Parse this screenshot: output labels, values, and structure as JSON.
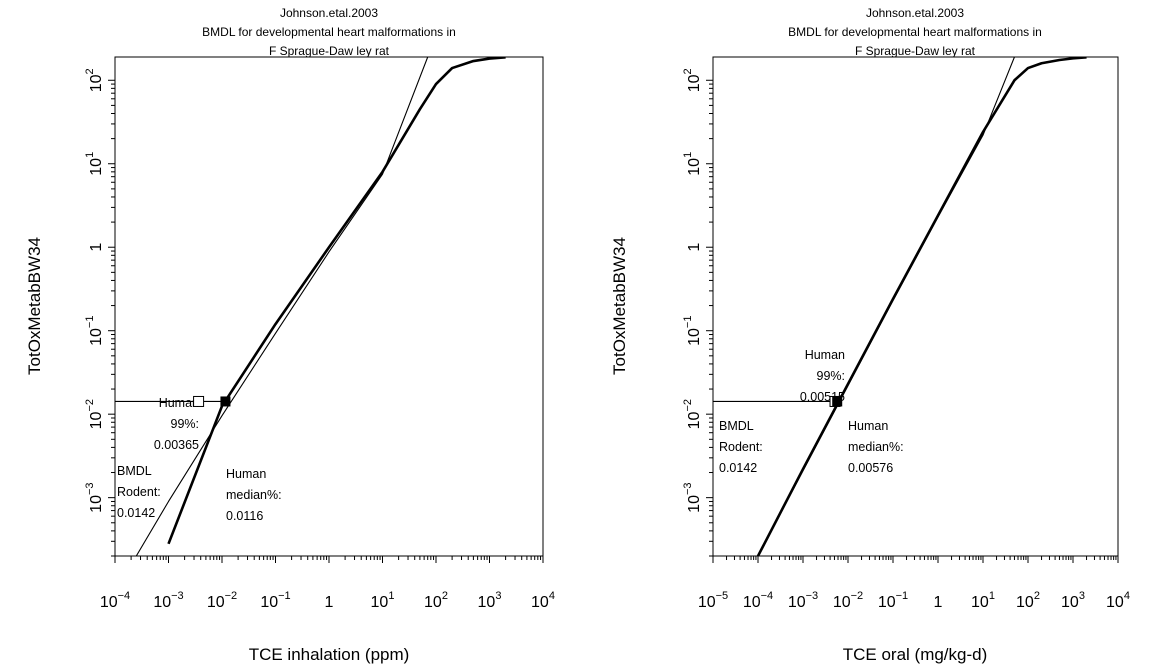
{
  "chart_data": [
    {
      "type": "line",
      "title_lines": [
        "Johnson.etal.2003",
        "BMDL for developmental heart malformations in",
        "F Sprague-Daw ley rat"
      ],
      "xlabel": "TCE inhalation (ppm)",
      "ylabel": "TotOxMetabBW34",
      "xscale": "log",
      "yscale": "log",
      "xlim": [
        0.0001,
        10000
      ],
      "ylim": [
        0.0002,
        190
      ],
      "x_ticks": [
        {
          "value": 0.0001,
          "base": "10",
          "exp": "−4"
        },
        {
          "value": 0.001,
          "base": "10",
          "exp": "−3"
        },
        {
          "value": 0.01,
          "base": "10",
          "exp": "−2"
        },
        {
          "value": 0.1,
          "base": "10",
          "exp": "−1"
        },
        {
          "value": 1,
          "base": "1",
          "exp": ""
        },
        {
          "value": 10,
          "base": "10",
          "exp": "1"
        },
        {
          "value": 100,
          "base": "10",
          "exp": "2"
        },
        {
          "value": 1000,
          "base": "10",
          "exp": "3"
        },
        {
          "value": 10000,
          "base": "10",
          "exp": "4"
        }
      ],
      "y_ticks": [
        {
          "value": 0.001,
          "base": "10",
          "exp": "−3"
        },
        {
          "value": 0.01,
          "base": "10",
          "exp": "−2"
        },
        {
          "value": 0.1,
          "base": "10",
          "exp": "−1"
        },
        {
          "value": 1,
          "base": "1",
          "exp": ""
        },
        {
          "value": 10,
          "base": "10",
          "exp": "1"
        },
        {
          "value": 100,
          "base": "10",
          "exp": "2"
        }
      ],
      "series": [
        {
          "style": "thin",
          "x": [
            0.00025,
            0.001,
            0.01,
            0.1,
            1,
            10,
            70
          ],
          "y": [
            0.0002,
            0.0009,
            0.0096,
            0.093,
            0.88,
            7.5,
            190
          ]
        },
        {
          "style": "thick",
          "x": [
            0.001,
            0.01,
            0.1,
            1,
            10,
            50,
            100,
            200,
            500,
            1000,
            2000
          ],
          "y": [
            0.00028,
            0.0125,
            0.12,
            1.0,
            8.0,
            45,
            90,
            140,
            170,
            182,
            188
          ]
        }
      ],
      "bmdl_y": 0.0142,
      "points": [
        {
          "label": "Human 99%",
          "x": 0.00365,
          "y": 0.0142,
          "marker": "open-square"
        },
        {
          "label": "Human median",
          "x": 0.0116,
          "y": 0.0142,
          "marker": "filled-square"
        }
      ],
      "annotations": {
        "bmdl": [
          "BMDL",
          "Rodent:",
          "0.0142"
        ],
        "p99": [
          "Human",
          "99%:",
          "0.00365"
        ],
        "median": [
          "Human",
          "median%:",
          "0.0116"
        ]
      }
    },
    {
      "type": "line",
      "title_lines": [
        "Johnson.etal.2003",
        "BMDL for developmental heart malformations in",
        "F Sprague-Daw ley rat"
      ],
      "xlabel": "TCE oral (mg/kg-d)",
      "ylabel": "TotOxMetabBW34",
      "xscale": "log",
      "yscale": "log",
      "xlim": [
        1e-05,
        10000
      ],
      "ylim": [
        0.0002,
        190
      ],
      "x_ticks": [
        {
          "value": 1e-05,
          "base": "10",
          "exp": "−5"
        },
        {
          "value": 0.0001,
          "base": "10",
          "exp": "−4"
        },
        {
          "value": 0.001,
          "base": "10",
          "exp": "−3"
        },
        {
          "value": 0.01,
          "base": "10",
          "exp": "−2"
        },
        {
          "value": 0.1,
          "base": "10",
          "exp": "−1"
        },
        {
          "value": 1,
          "base": "1",
          "exp": ""
        },
        {
          "value": 10,
          "base": "10",
          "exp": "1"
        },
        {
          "value": 100,
          "base": "10",
          "exp": "2"
        },
        {
          "value": 1000,
          "base": "10",
          "exp": "3"
        },
        {
          "value": 10000,
          "base": "10",
          "exp": "4"
        }
      ],
      "y_ticks": [
        {
          "value": 0.001,
          "base": "10",
          "exp": "−3"
        },
        {
          "value": 0.01,
          "base": "10",
          "exp": "−2"
        },
        {
          "value": 0.1,
          "base": "10",
          "exp": "−1"
        },
        {
          "value": 1,
          "base": "1",
          "exp": ""
        },
        {
          "value": 10,
          "base": "10",
          "exp": "1"
        },
        {
          "value": 100,
          "base": "10",
          "exp": "2"
        }
      ],
      "series": [
        {
          "style": "thin",
          "x": [
            0.0001,
            0.001,
            0.01,
            0.1,
            1,
            10,
            50
          ],
          "y": [
            0.0002,
            0.0021,
            0.022,
            0.23,
            2.3,
            22,
            190
          ]
        },
        {
          "style": "thick",
          "x": [
            0.0001,
            0.001,
            0.01,
            0.1,
            1,
            10,
            50,
            100,
            200,
            500,
            1000,
            2000
          ],
          "y": [
            0.0002,
            0.0022,
            0.023,
            0.24,
            2.4,
            24,
            100,
            140,
            160,
            175,
            183,
            188
          ]
        }
      ],
      "bmdl_y": 0.0142,
      "points": [
        {
          "label": "Human 99%",
          "x": 0.00515,
          "y": 0.0142,
          "marker": "open-square"
        },
        {
          "label": "Human median",
          "x": 0.00576,
          "y": 0.0142,
          "marker": "filled-square"
        }
      ],
      "annotations": {
        "bmdl": [
          "BMDL",
          "Rodent:",
          "0.0142"
        ],
        "p99": [
          "Human",
          "99%:",
          "0.00515"
        ],
        "median": [
          "Human",
          "median%:",
          "0.00576"
        ]
      }
    }
  ]
}
